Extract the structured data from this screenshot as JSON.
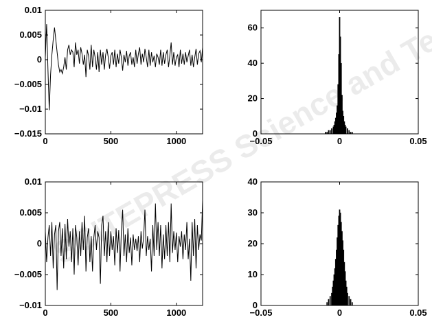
{
  "watermark": {
    "text": "SCITEPRESS Science and Technology"
  },
  "chart_data": [
    {
      "type": "line",
      "xlim": [
        0,
        1200
      ],
      "ylim": [
        -0.015,
        0.01
      ],
      "xticks": [
        0,
        500,
        1000
      ],
      "xtick_labels": [
        "0",
        "500",
        "1000"
      ],
      "yticks": [
        0.01,
        0.005,
        0,
        -0.005,
        -0.01,
        -0.015
      ],
      "ytick_labels": [
        "0.01",
        "0.005",
        "0",
        "−0.005",
        "−0.01",
        "−0.015"
      ],
      "series": [
        {
          "x": [
            0,
            10,
            20,
            30,
            40,
            50,
            60,
            70,
            80,
            90,
            100,
            110,
            120,
            130,
            140,
            150,
            160,
            170,
            180,
            190,
            200,
            210,
            220,
            230,
            240,
            250,
            260,
            270,
            280,
            290,
            300,
            310,
            320,
            330,
            340,
            350,
            360,
            370,
            380,
            390,
            400,
            410,
            420,
            430,
            440,
            450,
            460,
            470,
            480,
            490,
            500,
            510,
            520,
            530,
            540,
            550,
            560,
            570,
            580,
            590,
            600,
            610,
            620,
            630,
            640,
            650,
            660,
            670,
            680,
            690,
            700,
            710,
            720,
            730,
            740,
            750,
            760,
            770,
            780,
            790,
            800,
            810,
            820,
            830,
            840,
            850,
            860,
            870,
            880,
            890,
            900,
            910,
            920,
            930,
            940,
            950,
            960,
            970,
            980,
            990,
            1000,
            1010,
            1020,
            1030,
            1040,
            1050,
            1060,
            1070,
            1080,
            1090,
            1100,
            1110,
            1120,
            1130,
            1140,
            1150,
            1160,
            1170,
            1180,
            1190,
            1200
          ],
          "y": [
            0.0005,
            0.0072,
            -0.002,
            -0.0102,
            -0.003,
            0.001,
            0.004,
            0.0065,
            0.004,
            0.0015,
            -0.001,
            -0.0025,
            -0.002,
            -0.0028,
            -0.0015,
            0.0005,
            -0.002,
            0.002,
            0.003,
            0.001,
            0.002,
            0.0015,
            -0.0015,
            0.0035,
            0.001,
            0.002,
            -0.0008,
            0.0025,
            0.0012,
            -0.001,
            0.001,
            -0.0035,
            0.002,
            0.0008,
            -0.002,
            0.003,
            -0.0015,
            0.002,
            0.0005,
            -0.002,
            0.0015,
            -0.0025,
            0.002,
            -0.001,
            0.0015,
            -0.002,
            0.001,
            0.0022,
            0.0005,
            -0.0018,
            0.0008,
            0.0015,
            -0.001,
            0.002,
            -0.0015,
            0.0012,
            -0.0008,
            0.002,
            0.0005,
            -0.0022,
            0.001,
            -0.0005,
            0.0018,
            -0.0012,
            0.0008,
            0.0015,
            -0.001,
            0.0005,
            -0.0015,
            0.002,
            -0.0008,
            0.0012,
            0.0025,
            -0.001,
            0.0012,
            -0.0005,
            0.0022,
            0.0005,
            -0.0015,
            0.002,
            -0.0012,
            0.0015,
            -0.0005,
            0.0008,
            -0.0015,
            0.0012,
            0.0005,
            -0.001,
            0.002,
            -0.0012,
            0.0015,
            -0.0008,
            0.001,
            0.002,
            -0.0015,
            0.0008,
            0.0035,
            -0.001,
            0.0015,
            -0.0012,
            0.0005,
            0.001,
            -0.0015,
            0.002,
            -0.0008,
            0.0012,
            -0.001,
            0.0015,
            -0.0005,
            0.0008,
            0.002,
            -0.0012,
            0.001,
            -0.0015,
            0.0005,
            0.0022,
            -0.001,
            0.0012,
            0.0018,
            -0.0005,
            0.0025
          ]
        }
      ]
    },
    {
      "type": "bar",
      "xlim": [
        -0.05,
        0.05
      ],
      "ylim": [
        0,
        70
      ],
      "xticks": [
        -0.05,
        0,
        0.05
      ],
      "xtick_labels": [
        "−0.05",
        "0",
        "0.05"
      ],
      "yticks": [
        0,
        20,
        40,
        60
      ],
      "ytick_labels": [
        "0",
        "20",
        "40",
        "60"
      ],
      "series": [
        {
          "x": [
            -0.009,
            -0.008,
            -0.007,
            -0.006,
            -0.005,
            -0.004,
            -0.0035,
            -0.003,
            -0.0025,
            -0.002,
            -0.0015,
            -0.001,
            -0.0005,
            0,
            0.0005,
            0.001,
            0.0015,
            0.002,
            0.0025,
            0.003,
            0.0035,
            0.004,
            0.005,
            0.006,
            0.007,
            0.008
          ],
          "y": [
            1,
            1,
            2,
            2,
            3,
            4,
            5,
            7,
            9,
            12,
            16,
            28,
            45,
            66,
            55,
            40,
            22,
            13,
            10,
            7,
            5,
            4,
            3,
            2,
            1,
            1
          ]
        }
      ]
    },
    {
      "type": "line",
      "xlim": [
        0,
        1200
      ],
      "ylim": [
        -0.01,
        0.01
      ],
      "xticks": [
        0,
        500,
        1000
      ],
      "xtick_labels": [
        "0",
        "500",
        "1000"
      ],
      "yticks": [
        0.01,
        0.005,
        0,
        -0.005,
        -0.01
      ],
      "ytick_labels": [
        "0.01",
        "0.005",
        "0",
        "−0.005",
        "−0.01"
      ],
      "series": [
        {
          "x": [
            0,
            10,
            20,
            30,
            40,
            50,
            60,
            70,
            80,
            90,
            100,
            110,
            120,
            130,
            140,
            150,
            160,
            170,
            180,
            190,
            200,
            210,
            220,
            230,
            240,
            250,
            260,
            270,
            280,
            290,
            300,
            310,
            320,
            330,
            340,
            350,
            360,
            370,
            380,
            390,
            400,
            410,
            420,
            430,
            440,
            450,
            460,
            470,
            480,
            490,
            500,
            510,
            520,
            530,
            540,
            550,
            560,
            570,
            580,
            590,
            600,
            610,
            620,
            630,
            640,
            650,
            660,
            670,
            680,
            690,
            700,
            710,
            720,
            730,
            740,
            750,
            760,
            770,
            780,
            790,
            800,
            810,
            820,
            830,
            840,
            850,
            860,
            870,
            880,
            890,
            900,
            910,
            920,
            930,
            940,
            950,
            960,
            970,
            980,
            990,
            1000,
            1010,
            1020,
            1030,
            1040,
            1050,
            1060,
            1070,
            1080,
            1090,
            1100,
            1110,
            1120,
            1130,
            1140,
            1150,
            1160,
            1170,
            1180,
            1190,
            1200
          ],
          "y": [
            0.002,
            -0.003,
            0.001,
            0.003,
            -0.002,
            0.0035,
            -0.004,
            0.0015,
            0.003,
            -0.0075,
            0.002,
            0.0035,
            -0.002,
            0.0025,
            -0.004,
            0.0032,
            -0.0025,
            0.004,
            -0.0005,
            0.002,
            -0.003,
            0.0025,
            -0.005,
            0.003,
            0.001,
            -0.0035,
            0.002,
            -0.002,
            0.0035,
            -0.001,
            0.0045,
            -0.0045,
            0.001,
            0.0025,
            -0.003,
            0.0012,
            -0.0045,
            0.001,
            0.003,
            -0.001,
            0.002,
            0.001,
            -0.0065,
            0.003,
            0.0045,
            -0.002,
            0.002,
            -0.003,
            0.0035,
            -0.002,
            0.002,
            -0.001,
            0.0012,
            -0.0035,
            0.0025,
            -0.0015,
            0.0022,
            -0.0045,
            0.002,
            0.0055,
            -0.002,
            0.0015,
            -0.003,
            0.0025,
            -0.0015,
            0.001,
            -0.0035,
            0.0015,
            -0.001,
            0.0008,
            -0.0012,
            0.0012,
            -0.003,
            0.002,
            -0.0008,
            0.001,
            0.0055,
            -0.002,
            0.0012,
            -0.001,
            0.0008,
            -0.0045,
            0.003,
            -0.002,
            0.0065,
            -0.001,
            0.0035,
            -0.002,
            0.003,
            -0.004,
            0.0015,
            -0.0025,
            0.003,
            -0.002,
            0.0035,
            -0.003,
            0.0065,
            -0.0015,
            0.002,
            -0.001,
            0.0018,
            -0.003,
            0.0012,
            -0.0005,
            0.002,
            -0.0025,
            0.0015,
            -0.001,
            0.0035,
            -0.0025,
            0.0008,
            -0.006,
            0.0035,
            -0.002,
            0.004,
            -0.004,
            0.003,
            -0.001,
            0.0015,
            0.0005,
            0.007
          ]
        }
      ]
    },
    {
      "type": "bar",
      "xlim": [
        -0.05,
        0.05
      ],
      "ylim": [
        0,
        40
      ],
      "xticks": [
        -0.05,
        0,
        0.05
      ],
      "xtick_labels": [
        "−0.05",
        "0",
        "0.05"
      ],
      "yticks": [
        0,
        10,
        20,
        30,
        40
      ],
      "ytick_labels": [
        "0",
        "10",
        "20",
        "30",
        "40"
      ],
      "series": [
        {
          "x": [
            -0.008,
            -0.007,
            -0.006,
            -0.005,
            -0.0045,
            -0.004,
            -0.0035,
            -0.003,
            -0.0025,
            -0.002,
            -0.0015,
            -0.001,
            -0.0005,
            0,
            0.0005,
            0.001,
            0.0015,
            0.002,
            0.0025,
            0.003,
            0.0035,
            0.004,
            0.0045,
            0.005,
            0.006,
            0.007,
            0.008
          ],
          "y": [
            1,
            2,
            3,
            4,
            6,
            8,
            10,
            12,
            15,
            18,
            22,
            26,
            29,
            31,
            30,
            27,
            24,
            21,
            18,
            14,
            11,
            8,
            6,
            4,
            3,
            2,
            1
          ]
        }
      ]
    }
  ]
}
